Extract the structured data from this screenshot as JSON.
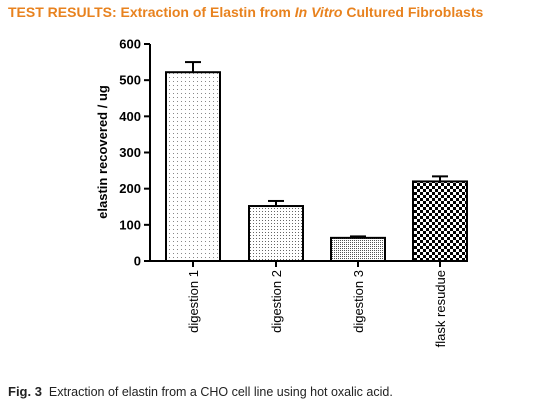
{
  "header": {
    "title_part1": "TEST RESULTS: Extraction of Elastin from ",
    "title_italic": "In Vitro",
    "title_part2": " Cultured Fibroblasts"
  },
  "caption": {
    "label": "Fig. 3",
    "text": "Extraction of elastin from a CHO cell line using hot oxalic acid."
  },
  "colors": {
    "title": "#e8821e",
    "axis": "#000000"
  },
  "chart_data": {
    "type": "bar",
    "title": "",
    "xlabel": "",
    "ylabel": "elastin recovered / ug",
    "ylim": [
      0,
      600
    ],
    "yticks": [
      0,
      100,
      200,
      300,
      400,
      500,
      600
    ],
    "categories": [
      "digestion 1",
      "digestion 2",
      "digestion 3",
      "flask resudue"
    ],
    "values": [
      522,
      152,
      64,
      220
    ],
    "errors": [
      28,
      14,
      4,
      14
    ],
    "fills": [
      "light-dots",
      "medium-dots",
      "dense-dots",
      "checkerboard"
    ],
    "grid": false,
    "legend": "none"
  }
}
